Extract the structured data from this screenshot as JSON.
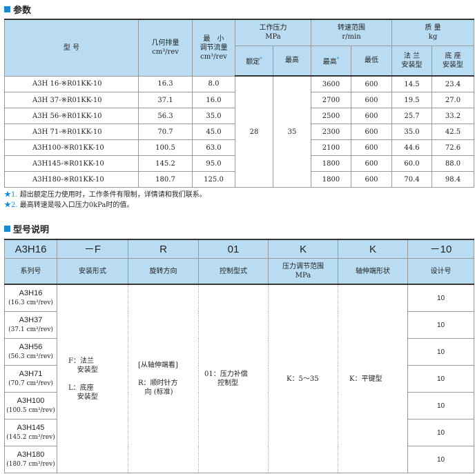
{
  "section1": {
    "title": "参数"
  },
  "params": {
    "headers": {
      "model": "型 号",
      "displacement": "几何排量",
      "displacement_unit": "cm³/rev",
      "min_flow": "最　小",
      "min_flow2": "调节流量",
      "min_flow_unit": "cm³/rev",
      "pressure": "工作压力",
      "pressure_unit": "MPa",
      "rated": "额定",
      "max": "最高",
      "speed": "转速范围",
      "speed_unit": "r/min",
      "speed_max": "最高",
      "speed_min": "最低",
      "mass": "质 量",
      "mass_unit": "kg",
      "flange": "法 兰",
      "flange2": "安装型",
      "base": "底 座",
      "base2": "安装型",
      "star": "*"
    },
    "rows": [
      {
        "model": "A3H 16-※R01KK-10",
        "disp": "16.3",
        "minflow": "8.0",
        "smax": "3600",
        "smin": "600",
        "flange": "14.5",
        "base": "23.4"
      },
      {
        "model": "A3H 37-※R01KK-10",
        "disp": "37.1",
        "minflow": "16.0",
        "smax": "2700",
        "smin": "600",
        "flange": "19.5",
        "base": "27.0"
      },
      {
        "model": "A3H 56-※R01KK-10",
        "disp": "56.3",
        "minflow": "35.0",
        "smax": "2500",
        "smin": "600",
        "flange": "25.7",
        "base": "33.2"
      },
      {
        "model": "A3H 71-※R01KK-10",
        "disp": "70.7",
        "minflow": "45.0",
        "smax": "2300",
        "smin": "600",
        "flange": "35.0",
        "base": "42.5"
      },
      {
        "model": "A3H100-※R01KK-10",
        "disp": "100.5",
        "minflow": "63.0",
        "smax": "2100",
        "smin": "600",
        "flange": "44.6",
        "base": "72.6"
      },
      {
        "model": "A3H145-※R01KK-10",
        "disp": "145.2",
        "minflow": "95.0",
        "smax": "1800",
        "smin": "600",
        "flange": "60.0",
        "base": "88.0"
      },
      {
        "model": "A3H180-※R01KK-10",
        "disp": "180.7",
        "minflow": "125.0",
        "smax": "1800",
        "smin": "600",
        "flange": "70.4",
        "base": "98.4"
      }
    ],
    "rated_pressure": "28",
    "max_pressure": "35"
  },
  "footnotes": [
    {
      "mark": "★1.",
      "text": "超出额定压力使用时，工作条件有限制，详情请和我们联系。"
    },
    {
      "mark": "★2.",
      "text": "最高转速是吸入口压力0kPa时的值。"
    }
  ],
  "section2": {
    "title": "型号说明"
  },
  "code": {
    "parts": [
      "A3H16",
      "－F",
      "R",
      "01",
      "K",
      "K",
      "－10"
    ],
    "labels": [
      "系列号",
      "安装形式",
      "旋转方向",
      "控制型式",
      "压力调节范围",
      "轴伸端形状",
      "设计号"
    ],
    "pressure_unit": "MPa",
    "series": [
      {
        "name": "A3H16",
        "disp": "(16.3 cm³/rev)"
      },
      {
        "name": "A3H37",
        "disp": "(37.1 cm³/rev)"
      },
      {
        "name": "A3H56",
        "disp": "(56.3 cm³/rev)"
      },
      {
        "name": "A3H71",
        "disp": "(70.7 cm³/rev)"
      },
      {
        "name": "A3H100",
        "disp": "(100.5 cm³/rev)"
      },
      {
        "name": "A3H145",
        "disp": "(145.2 cm³/rev)"
      },
      {
        "name": "A3H180",
        "disp": "(180.7 cm³/rev)"
      }
    ],
    "mounting": {
      "f": "F：法兰",
      "f2": "安装型",
      "l": "L：底座",
      "l2": "安装型"
    },
    "rotation": {
      "a": "[从轴伸端看]",
      "b": "R：顺时针方",
      "c": "向 (标准)"
    },
    "control": {
      "a": "01：压力补偿",
      "b": "控制型"
    },
    "pressure_range": "K：5～35",
    "shaft": "K：平键型",
    "design": [
      "10",
      "10",
      "10",
      "10",
      "10",
      "10",
      "10"
    ]
  }
}
